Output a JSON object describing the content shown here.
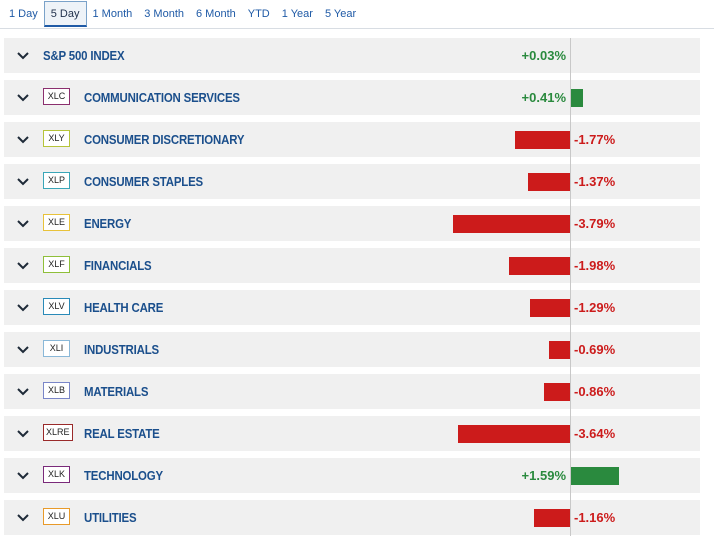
{
  "tabs": [
    {
      "label": "1 Day",
      "active": false
    },
    {
      "label": "5 Day",
      "active": true
    },
    {
      "label": "1 Month",
      "active": false
    },
    {
      "label": "3 Month",
      "active": false
    },
    {
      "label": "6 Month",
      "active": false
    },
    {
      "label": "YTD",
      "active": false
    },
    {
      "label": "1 Year",
      "active": false
    },
    {
      "label": "5 Year",
      "active": false
    }
  ],
  "colors": {
    "positive": "#2a8a3e",
    "negative": "#cc1b1b",
    "name": "#1b4f8c"
  },
  "icons": {
    "row_toggle": "chevron-down-icon"
  },
  "chart_data": {
    "type": "bar",
    "orientation": "horizontal",
    "title": "",
    "xlabel": "",
    "ylabel": "",
    "categories": [
      "S&P 500 INDEX",
      "COMMUNICATION SERVICES",
      "CONSUMER DISCRETIONARY",
      "CONSUMER STAPLES",
      "ENERGY",
      "FINANCIALS",
      "HEALTH CARE",
      "INDUSTRIALS",
      "MATERIALS",
      "REAL ESTATE",
      "TECHNOLOGY",
      "UTILITIES"
    ],
    "values": [
      0.03,
      0.41,
      -1.77,
      -1.37,
      -3.79,
      -1.98,
      -1.29,
      -0.69,
      -0.86,
      -3.64,
      1.59,
      -1.16
    ],
    "rows": [
      {
        "ticker": "",
        "ticker_color": "",
        "name": "S&P 500 INDEX",
        "value": 0.03,
        "label": "+0.03%"
      },
      {
        "ticker": "XLC",
        "ticker_color": "#8b2f6e",
        "name": "COMMUNICATION SERVICES",
        "value": 0.41,
        "label": "+0.41%"
      },
      {
        "ticker": "XLY",
        "ticker_color": "#b6c43a",
        "name": "CONSUMER DISCRETIONARY",
        "value": -1.77,
        "label": "-1.77%"
      },
      {
        "ticker": "XLP",
        "ticker_color": "#3aa6b8",
        "name": "CONSUMER STAPLES",
        "value": -1.37,
        "label": "-1.37%"
      },
      {
        "ticker": "XLE",
        "ticker_color": "#e8c23a",
        "name": "ENERGY",
        "value": -3.79,
        "label": "-3.79%"
      },
      {
        "ticker": "XLF",
        "ticker_color": "#8fbf3a",
        "name": "FINANCIALS",
        "value": -1.98,
        "label": "-1.98%"
      },
      {
        "ticker": "XLV",
        "ticker_color": "#2a8ab8",
        "name": "HEALTH CARE",
        "value": -1.29,
        "label": "-1.29%"
      },
      {
        "ticker": "XLI",
        "ticker_color": "#8ab8d8",
        "name": "INDUSTRIALS",
        "value": -0.69,
        "label": "-0.69%"
      },
      {
        "ticker": "XLB",
        "ticker_color": "#7a86c8",
        "name": "MATERIALS",
        "value": -0.86,
        "label": "-0.86%"
      },
      {
        "ticker": "XLRE",
        "ticker_color": "#9a2a2a",
        "name": "REAL ESTATE",
        "value": -3.64,
        "label": "-3.64%"
      },
      {
        "ticker": "XLK",
        "ticker_color": "#7a2a7a",
        "name": "TECHNOLOGY",
        "value": 1.59,
        "label": "+1.59%"
      },
      {
        "ticker": "XLU",
        "ticker_color": "#e89a2a",
        "name": "UTILITIES",
        "value": -1.16,
        "label": "-1.16%"
      }
    ]
  }
}
